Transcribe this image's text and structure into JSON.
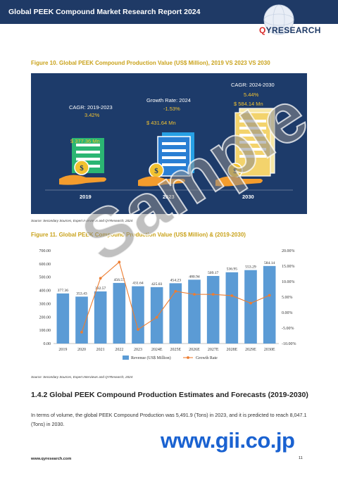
{
  "header": {
    "title": "Global PEEK Compound Market Research Report 2024",
    "logo_text": "QYRESEARCH",
    "logo_q": "Q"
  },
  "figure10": {
    "title": "Figure 10.  Global PEEK Compound Production Value (US$ Million), 2019 VS 2023 VS 2030",
    "items": [
      {
        "label": "CAGR: 2019-2023",
        "rate": "3.42%",
        "value": "$ 377.36 Mn",
        "year": "2019"
      },
      {
        "label": "Growth Rate: 2024",
        "rate": "-1.53%",
        "value": "$ 431.64 Mn",
        "year": "2023"
      },
      {
        "label": "CAGR: 2024-2030",
        "rate": "5.44%",
        "value": "$ 584.14 Mn",
        "year": "2030"
      }
    ],
    "source": "Source: Secondary Sources, Expert Interviews and QYResearch, 2024"
  },
  "figure11": {
    "title": "Figure 11.   Global PEEK Compound Production Value (US$ Million) & (2019-2030)",
    "source": "Source: Secondary Sources, Expert Interviews and QYResearch, 2024"
  },
  "chart_data": {
    "type": "bar",
    "categories": [
      "2019",
      "2020",
      "2021",
      "2022",
      "2023",
      "2024E",
      "2025E",
      "2026E",
      "2027E",
      "2028E",
      "2029E",
      "2030E"
    ],
    "series": [
      {
        "name": "Revenue (US$ Million)",
        "kind": "bar",
        "axis": "left",
        "color": "#5b9bd5",
        "values": [
          377.36,
          353.43,
          392.57,
          456.57,
          431.64,
          425.03,
          454.23,
          480.94,
          509.17,
          536.95,
          553.29,
          584.14
        ],
        "labels": [
          "377.36",
          "353.43",
          "392.57",
          "456.57",
          "431.64",
          "425.03",
          "454.23",
          "480.94",
          "509.17",
          "536.95",
          "553.29",
          "584.14"
        ]
      },
      {
        "name": "Growth Rate",
        "kind": "line",
        "axis": "right",
        "color": "#ed7d31",
        "values": [
          null,
          -6.34,
          11.07,
          16.3,
          -5.46,
          -1.53,
          6.87,
          5.88,
          5.87,
          5.46,
          3.04,
          5.57
        ]
      }
    ],
    "yleft": {
      "min": 0,
      "max": 700,
      "step": 100,
      "ticks": [
        "0.00",
        "100.00",
        "200.00",
        "300.00",
        "400.00",
        "500.00",
        "600.00",
        "700.00"
      ]
    },
    "yright": {
      "min": -10,
      "max": 20,
      "step": 5,
      "ticks": [
        "-10.00%",
        "-5.00%",
        "0.00%",
        "5.00%",
        "10.00%",
        "15.00%",
        "20.00%"
      ]
    },
    "legend": "bottom",
    "grid": false
  },
  "section": {
    "heading": "1.4.2  Global PEEK Compound Production Estimates and Forecasts (2019-2030)",
    "paragraph": "In terms of volume, the global PEEK Compound Production was 5,491.9 (Tons) in 2023, and it is predicted to reach 8,047.1 (Tons) in 2030."
  },
  "footer": {
    "url": "www.qyresearch.com",
    "page": "11"
  },
  "overlays": {
    "watermark": "Sample",
    "banner": "www.gii.co.jp"
  },
  "colors": {
    "header": "#1f3a66",
    "accent": "#c9a21a",
    "panel": "#1d3b6a",
    "bar": "#5b9bd5",
    "line": "#ed7d31",
    "banner": "#1a62d1"
  }
}
